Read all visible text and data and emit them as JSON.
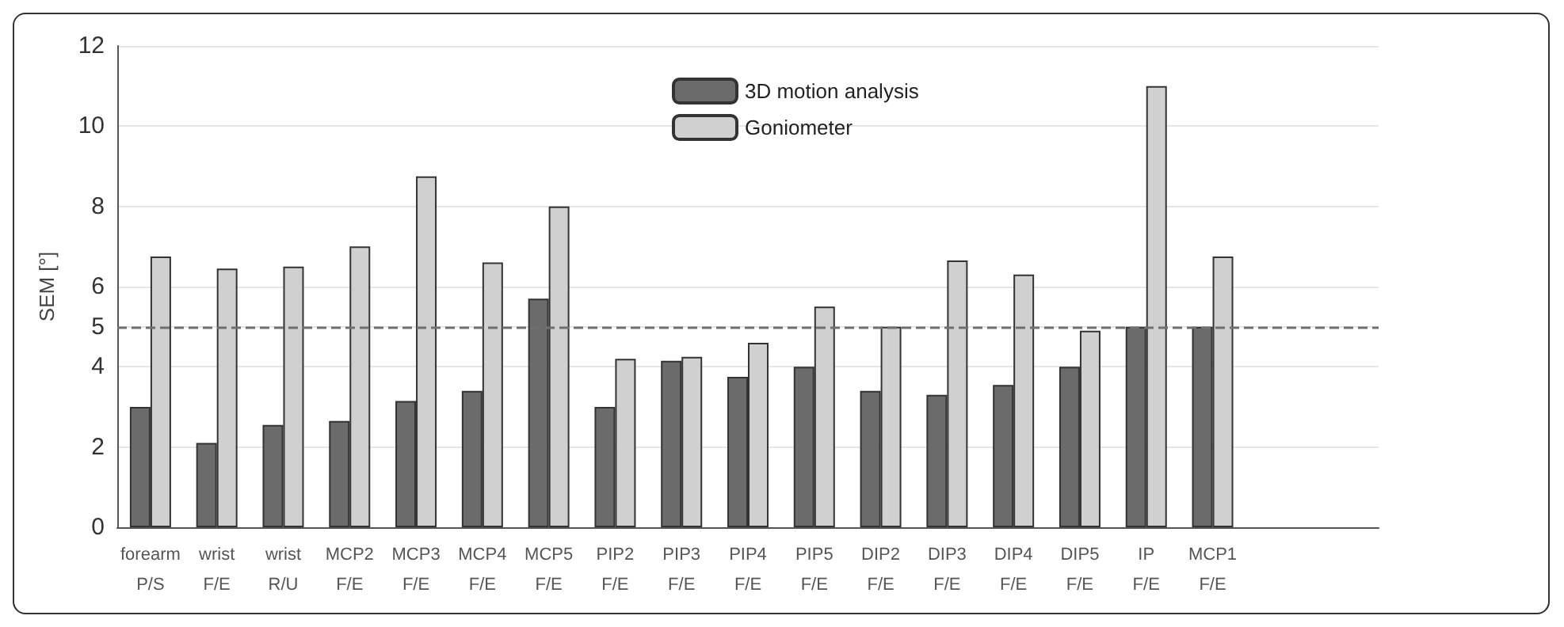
{
  "chart_data": {
    "type": "bar",
    "ylabel": "SEM [°]",
    "categories": [
      "forearm\nP/S",
      "wrist\nF/E",
      "wrist\nR/U",
      "MCP2\nF/E",
      "MCP3\nF/E",
      "MCP4\nF/E",
      "MCP5\nF/E",
      "PIP2\nF/E",
      "PIP3\nF/E",
      "PIP4\nF/E",
      "PIP5\nF/E",
      "DIP2\nF/E",
      "DIP3\nF/E",
      "DIP4\nF/E",
      "DIP5\nF/E",
      "IP\nF/E",
      "MCP1\nF/E",
      null,
      null
    ],
    "series": [
      {
        "name": "3D motion analysis",
        "color": "#6b6b6b",
        "values": [
          3.0,
          2.1,
          2.55,
          2.65,
          3.15,
          3.4,
          5.7,
          3.0,
          4.15,
          3.75,
          4.0,
          3.4,
          3.3,
          3.55,
          4.0,
          5.0,
          5.0,
          null,
          null
        ]
      },
      {
        "name": "Goniometer",
        "color": "#d0d0d0",
        "values": [
          6.75,
          6.45,
          6.5,
          7.0,
          8.75,
          6.6,
          8.0,
          4.2,
          4.25,
          4.6,
          5.5,
          5.0,
          6.65,
          6.3,
          4.9,
          11.0,
          6.75,
          null,
          null
        ]
      }
    ],
    "ylim": [
      0,
      12
    ],
    "yticks": [
      0,
      2,
      4,
      5,
      6,
      8,
      10,
      12
    ],
    "grid": "y",
    "legend": "top",
    "ref_lines": [
      {
        "axis": "y",
        "value": 5,
        "color": "#707070",
        "line_style": "dashed"
      }
    ]
  }
}
